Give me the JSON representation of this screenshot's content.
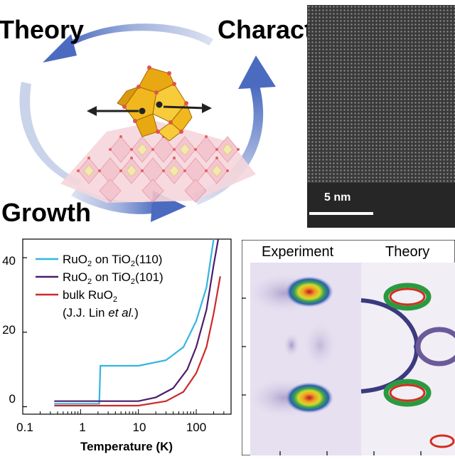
{
  "cycle": {
    "theory_label": "Theory",
    "characterization_label": "Characterizatio",
    "growth_label": "Growth"
  },
  "stem_image": {
    "scale_label": "5 nm"
  },
  "resistance_plot": {
    "y_ticks": [
      "40",
      "20",
      "0"
    ],
    "x_ticks": [
      "0.1",
      "1",
      "10",
      "100"
    ],
    "xlabel": "Temperature (K)"
  },
  "chart_data": {
    "type": "line",
    "title": "",
    "xlabel": "Temperature (K)",
    "ylabel": "",
    "x_scale": "log",
    "xlim": [
      0.1,
      400
    ],
    "ylim": [
      -2,
      45
    ],
    "legend_position": "top-left",
    "series": [
      {
        "name": "RuO2 on TiO2(110)",
        "color": "#33b5e0",
        "points": [
          [
            0.35,
            0.8
          ],
          [
            2.1,
            0.8
          ],
          [
            2.2,
            11
          ],
          [
            10,
            11
          ],
          [
            30,
            12.5
          ],
          [
            60,
            16
          ],
          [
            100,
            23
          ],
          [
            150,
            32
          ],
          [
            200,
            45
          ]
        ]
      },
      {
        "name": "RuO2 on TiO2(101)",
        "color": "#4b1d6b",
        "points": [
          [
            0.35,
            1.5
          ],
          [
            10,
            1.5
          ],
          [
            20,
            2.5
          ],
          [
            40,
            5
          ],
          [
            70,
            10
          ],
          [
            100,
            16
          ],
          [
            150,
            26
          ],
          [
            200,
            38
          ],
          [
            240,
            45
          ]
        ]
      },
      {
        "name": "bulk RuO2 (J.J. Lin et al.)",
        "color": "#cc2a2a",
        "points": [
          [
            0.35,
            0.3
          ],
          [
            10,
            0.3
          ],
          [
            30,
            1.5
          ],
          [
            60,
            4
          ],
          [
            100,
            9
          ],
          [
            150,
            16
          ],
          [
            200,
            25
          ],
          [
            260,
            35
          ]
        ]
      }
    ]
  },
  "legend": {
    "items": [
      {
        "text": "RuO",
        "sub1": "2",
        "mid": " on TiO",
        "sub2": "2",
        "tail": "(110)",
        "color": "#33b5e0"
      },
      {
        "text": "RuO",
        "sub1": "2",
        "mid": " on TiO",
        "sub2": "2",
        "tail": "(101)",
        "color": "#4b1d6b"
      },
      {
        "text": "bulk RuO",
        "sub1": "2",
        "mid": "",
        "sub2": "",
        "tail": "",
        "color": "#cc2a2a"
      }
    ],
    "citation_prefix": "(J.J. Lin ",
    "citation_italic": "et al.",
    "citation_suffix": ")"
  },
  "arpes": {
    "experiment_label": "Experiment",
    "theory_label": "Theory"
  }
}
